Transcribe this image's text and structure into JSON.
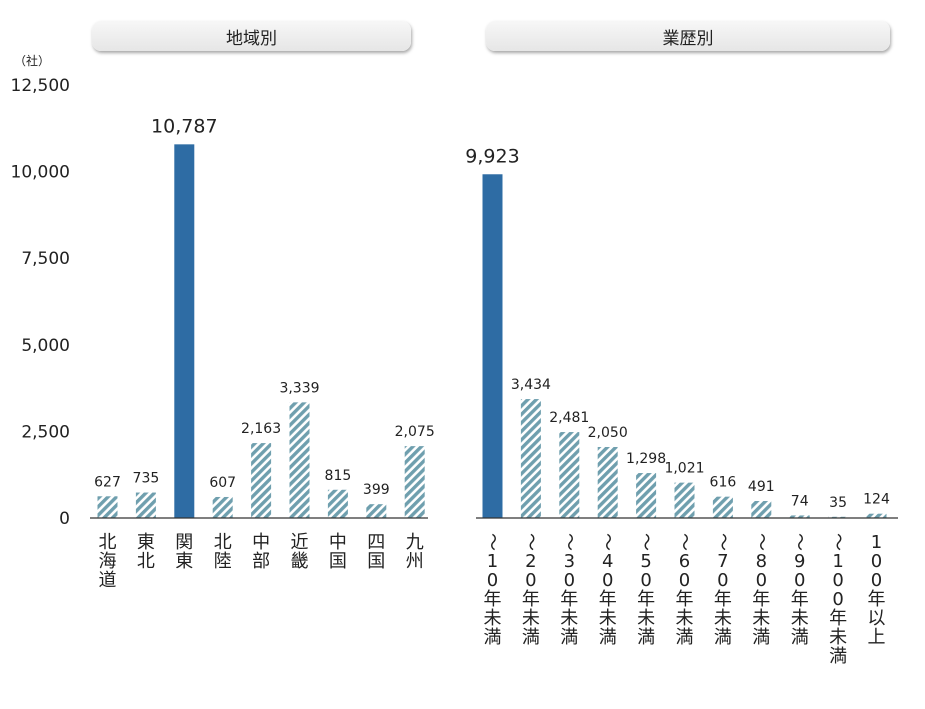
{
  "headers": {
    "left": "地域別",
    "right": "業歴別"
  },
  "unit_label": "（社）",
  "chart_data": {
    "type": "bar",
    "ylim": [
      0,
      12500
    ],
    "yticks": [
      "0",
      "2,500",
      "5,000",
      "7,500",
      "10,000",
      "12,500"
    ],
    "ytick_values": [
      0,
      2500,
      5000,
      7500,
      10000,
      12500
    ],
    "highlight_color": "#2e6ca4",
    "hatch_color": "#6f9fae",
    "groups": [
      {
        "name": "地域別",
        "categories": [
          "北海道",
          "東北",
          "関東",
          "北陸",
          "中部",
          "近畿",
          "中国",
          "四国",
          "九州"
        ],
        "values": [
          627,
          735,
          10787,
          607,
          2163,
          3339,
          815,
          399,
          2075
        ],
        "value_labels": [
          "627",
          "735",
          "10,787",
          "607",
          "2,163",
          "3,339",
          "815",
          "399",
          "2,075"
        ],
        "highlight": [
          false,
          false,
          true,
          false,
          false,
          false,
          false,
          false,
          false
        ]
      },
      {
        "name": "業歴別",
        "categories": [
          "～10年未満",
          "～20年未満",
          "～30年未満",
          "～40年未満",
          "～50年未満",
          "～60年未満",
          "～70年未満",
          "～80年未満",
          "～90年未満",
          "～100年未満",
          "100年以上"
        ],
        "values": [
          9923,
          3434,
          2481,
          2050,
          1298,
          1021,
          616,
          491,
          74,
          35,
          124
        ],
        "value_labels": [
          "9,923",
          "3,434",
          "2,481",
          "2,050",
          "1,298",
          "1,021",
          "616",
          "491",
          "74",
          "35",
          "124"
        ],
        "highlight": [
          true,
          false,
          false,
          false,
          false,
          false,
          false,
          false,
          false,
          false,
          false
        ]
      }
    ]
  }
}
